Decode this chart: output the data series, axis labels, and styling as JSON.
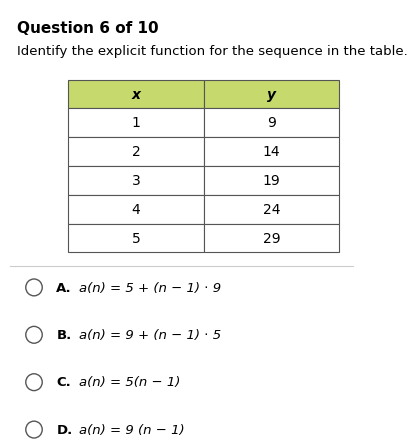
{
  "title": "Question 6 of 10",
  "subtitle": "Identify the explicit function for the sequence in the table.",
  "table_headers": [
    "x",
    "y"
  ],
  "table_data": [
    [
      1,
      9
    ],
    [
      2,
      14
    ],
    [
      3,
      19
    ],
    [
      4,
      24
    ],
    [
      5,
      29
    ]
  ],
  "header_bg": "#c5d96d",
  "header_text_color": "#000000",
  "row_bg": "#ffffff",
  "row_border": "#555555",
  "options": [
    [
      "A.",
      "a(n) = 5 + (n − 1) ⋅ 9"
    ],
    [
      "B.",
      "a(n) = 9 + (n − 1) ⋅ 5"
    ],
    [
      "C.",
      "a(n) = 5(n − 1)"
    ],
    [
      "D.",
      "a(n) = 9 (n − 1)"
    ]
  ],
  "circle_color": "#555555",
  "bg_color": "#ffffff",
  "divider_color": "#cccccc"
}
